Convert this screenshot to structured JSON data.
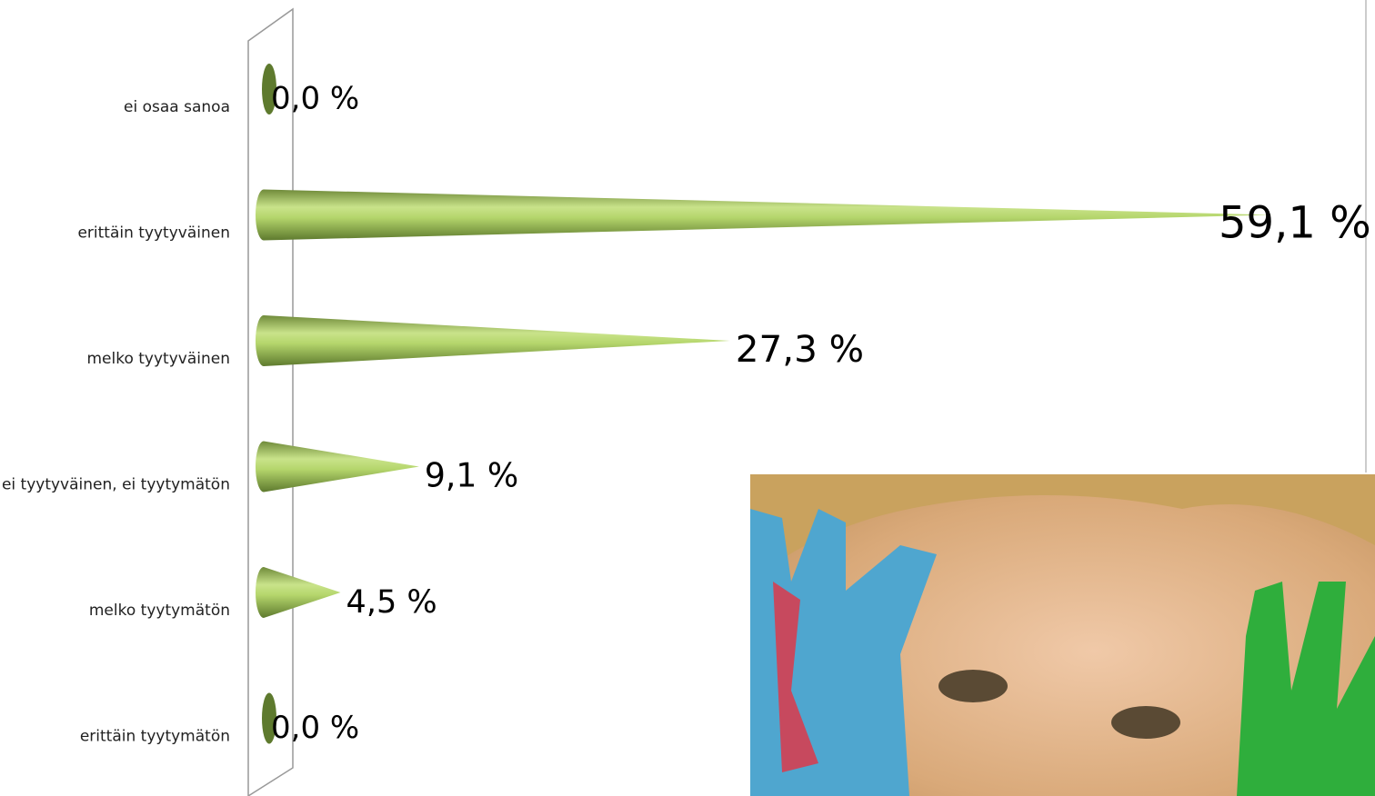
{
  "chart_data": {
    "type": "cone-bar",
    "categories": [
      "ei osaa sanoa",
      "erittäin tyytyväinen",
      "melko tyytyväinen",
      "ei tyytyväinen, ei tyytymätön",
      "melko tyytymätön",
      "erittäin tyytymätön"
    ],
    "values": [
      0.0,
      59.1,
      27.3,
      9.1,
      4.5,
      0.0
    ],
    "value_labels": [
      "0,0 %",
      "59,1 %",
      "27,3 %",
      "9,1 %",
      "4,5 %",
      "0,0 %"
    ],
    "color": "#9bbb59"
  }
}
